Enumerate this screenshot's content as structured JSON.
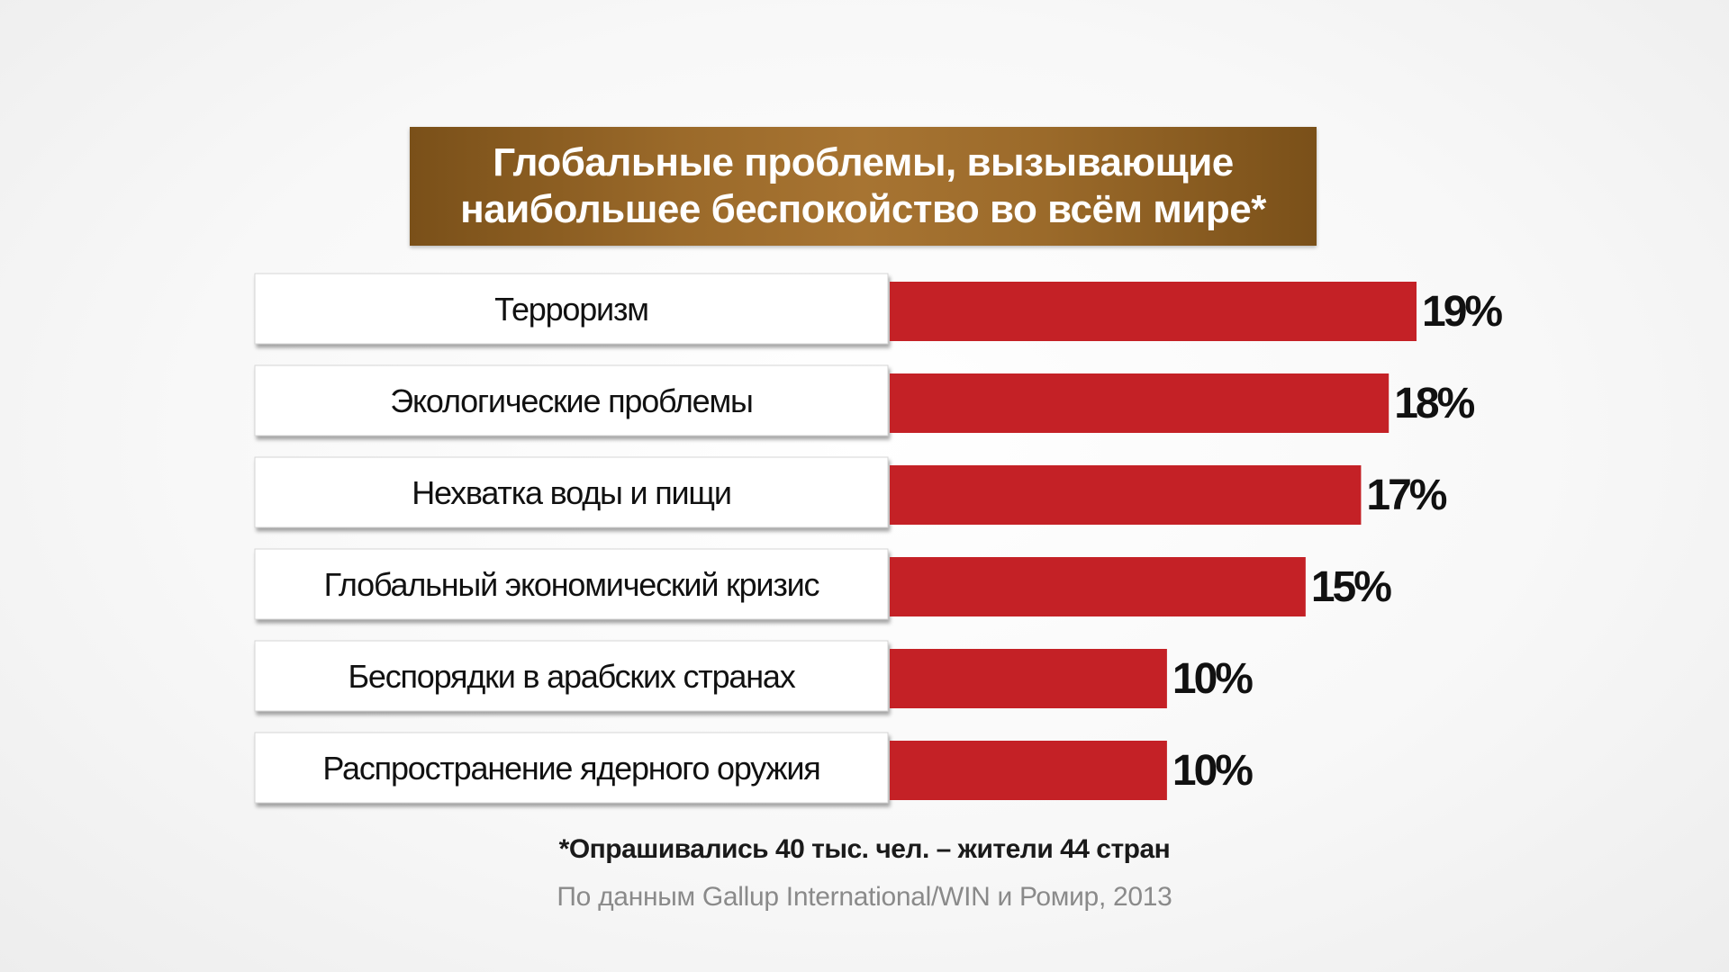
{
  "title_lines": [
    "Глобальные проблемы, вызывающие",
    "наибольшее беспокойство во всём мире*"
  ],
  "colors": {
    "bar": "#c42126",
    "title_bg": "#96652a",
    "label_bg": "#ffffff",
    "value_text": "#111111"
  },
  "chart_data": {
    "type": "bar",
    "orientation": "horizontal",
    "categories": [
      "Терроризм",
      "Экологические проблемы",
      "Нехватка воды и пищи",
      "Глобальный экономический кризис",
      "Беспорядки в арабских странах",
      "Распространение ядерного оружия"
    ],
    "values": [
      19,
      18,
      17,
      15,
      10,
      10
    ],
    "value_labels": [
      "19%",
      "18%",
      "17%",
      "15%",
      "10%",
      "10%"
    ],
    "unit": "%",
    "title": "Глобальные проблемы, вызывающие наибольшее беспокойство во всём мире*",
    "xlim": [
      0,
      19
    ],
    "grid": false,
    "legend": "none"
  },
  "footnote": "*Опрашивались 40 тыс. чел. – жители 44 стран",
  "source": "По данным Gallup International/WIN и Ромир, 2013"
}
